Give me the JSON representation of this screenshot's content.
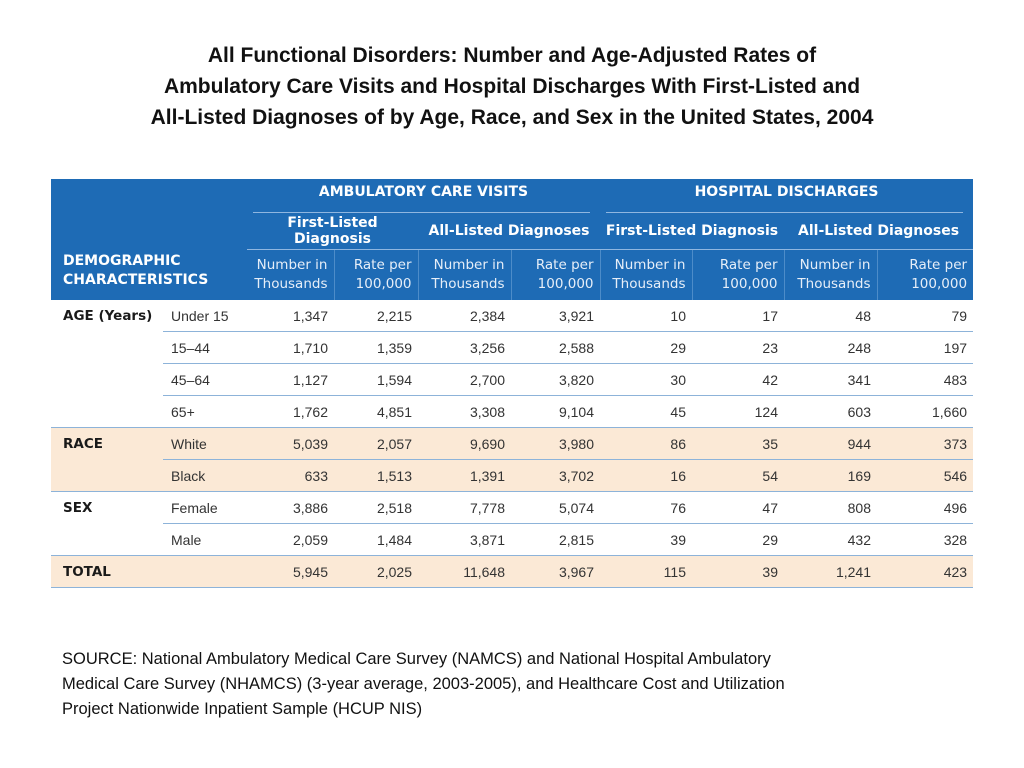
{
  "title_lines": [
    "All Functional Disorders:  Number and Age-Adjusted Rates of",
    "Ambulatory Care Visits and Hospital Discharges With First-Listed and",
    "All-Listed Diagnoses of by Age, Race, and Sex in the United States, 2004"
  ],
  "table": {
    "demo_header": [
      "DEMOGRAPHIC",
      "CHARACTERISTICS"
    ],
    "group_headers": [
      "AMBULATORY CARE VISITS",
      "HOSPITAL DISCHARGES"
    ],
    "sub_headers": [
      "First-Listed Diagnosis",
      "All-Listed Diagnoses",
      "First-Listed Diagnosis",
      "All-Listed Diagnoses"
    ],
    "col_number": [
      "Number in",
      "Thousands"
    ],
    "col_rate": [
      "Rate per",
      "100,000"
    ],
    "rows": [
      {
        "cat": "AGE (Years)",
        "sub": "Under 15",
        "values": [
          "1,347",
          "2,215",
          "2,384",
          "3,921",
          "10",
          "17",
          "48",
          "79"
        ]
      },
      {
        "cat": "",
        "sub": "15–44",
        "values": [
          "1,710",
          "1,359",
          "3,256",
          "2,588",
          "29",
          "23",
          "248",
          "197"
        ]
      },
      {
        "cat": "",
        "sub": "45–64",
        "values": [
          "1,127",
          "1,594",
          "2,700",
          "3,820",
          "30",
          "42",
          "341",
          "483"
        ]
      },
      {
        "cat": "",
        "sub": "65+",
        "values": [
          "1,762",
          "4,851",
          "3,308",
          "9,104",
          "45",
          "124",
          "603",
          "1,660"
        ]
      },
      {
        "cat": "RACE",
        "sub": "White",
        "values": [
          "5,039",
          "2,057",
          "9,690",
          "3,980",
          "86",
          "35",
          "944",
          "373"
        ]
      },
      {
        "cat": "",
        "sub": "Black",
        "values": [
          "633",
          "1,513",
          "1,391",
          "3,702",
          "16",
          "54",
          "169",
          "546"
        ]
      },
      {
        "cat": "SEX",
        "sub": "Female",
        "values": [
          "3,886",
          "2,518",
          "7,778",
          "5,074",
          "76",
          "47",
          "808",
          "496"
        ]
      },
      {
        "cat": "",
        "sub": "Male",
        "values": [
          "2,059",
          "1,484",
          "3,871",
          "2,815",
          "39",
          "29",
          "432",
          "328"
        ]
      },
      {
        "cat": "TOTAL",
        "sub": "",
        "values": [
          "5,945",
          "2,025",
          "11,648",
          "3,967",
          "115",
          "39",
          "1,241",
          "423"
        ]
      }
    ]
  },
  "source_lines": [
    "SOURCE: National Ambulatory Medical Care Survey (NAMCS) and National Hospital Ambulatory",
    "Medical Care Survey (NHAMCS) (3-year average, 2003-2005), and Healthcare Cost and Utilization",
    "Project Nationwide Inpatient Sample (HCUP NIS)"
  ],
  "colors": {
    "header_bg": "#1e6bb5",
    "shade_bg": "#fbe9d6",
    "rule": "#8db3d9"
  }
}
